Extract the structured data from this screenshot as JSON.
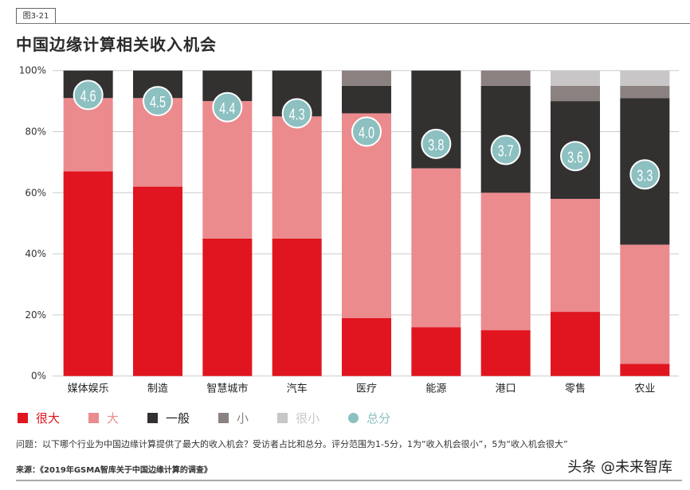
{
  "figure_tag": "图3-21",
  "chart_data": {
    "type": "bar",
    "stacked": true,
    "title": "中国边缘计算相关收入机会",
    "categories": [
      "媒体娱乐",
      "制造",
      "智慧城市",
      "汽车",
      "医疗",
      "能源",
      "港口",
      "零售",
      "农业"
    ],
    "series": [
      {
        "name": "很大",
        "color": "#e0151f",
        "values": [
          67,
          62,
          45,
          45,
          19,
          16,
          15,
          21,
          4
        ]
      },
      {
        "name": "大",
        "color": "#eb8b8e",
        "values": [
          24,
          29,
          45,
          40,
          67,
          52,
          45,
          37,
          39
        ]
      },
      {
        "name": "一般",
        "color": "#333030",
        "values": [
          9,
          9,
          10,
          15,
          9,
          32,
          35,
          32,
          48
        ]
      },
      {
        "name": "小",
        "color": "#8b8181",
        "values": [
          0,
          0,
          0,
          0,
          5,
          0,
          5,
          5,
          4
        ]
      },
      {
        "name": "很小",
        "color": "#c8c6c6",
        "values": [
          0,
          0,
          0,
          0,
          0,
          0,
          0,
          5,
          5
        ]
      }
    ],
    "scores": {
      "name": "总分",
      "color": "#8dc0c0",
      "values": [
        "4.6",
        "4.5",
        "4.4",
        "4.3",
        "4.0",
        "3.8",
        "3.7",
        "3.6",
        "3.3"
      ],
      "scale_max": 5
    },
    "ylim": [
      0,
      100
    ],
    "yticks": [
      "0%",
      "20%",
      "40%",
      "60%",
      "80%",
      "100%"
    ],
    "grid": true,
    "legend": "bottom"
  },
  "note": "问题：以下哪个行业为中国边缘计算提供了最大的收入机会？受访者占比和总分。评分范围为1-5分，1为“收入机会很小”，5为“收入机会很大”",
  "source": "来源：《2019年GSMA智库关于中国边缘计算的调查》",
  "watermark": "头条 @未来智库"
}
